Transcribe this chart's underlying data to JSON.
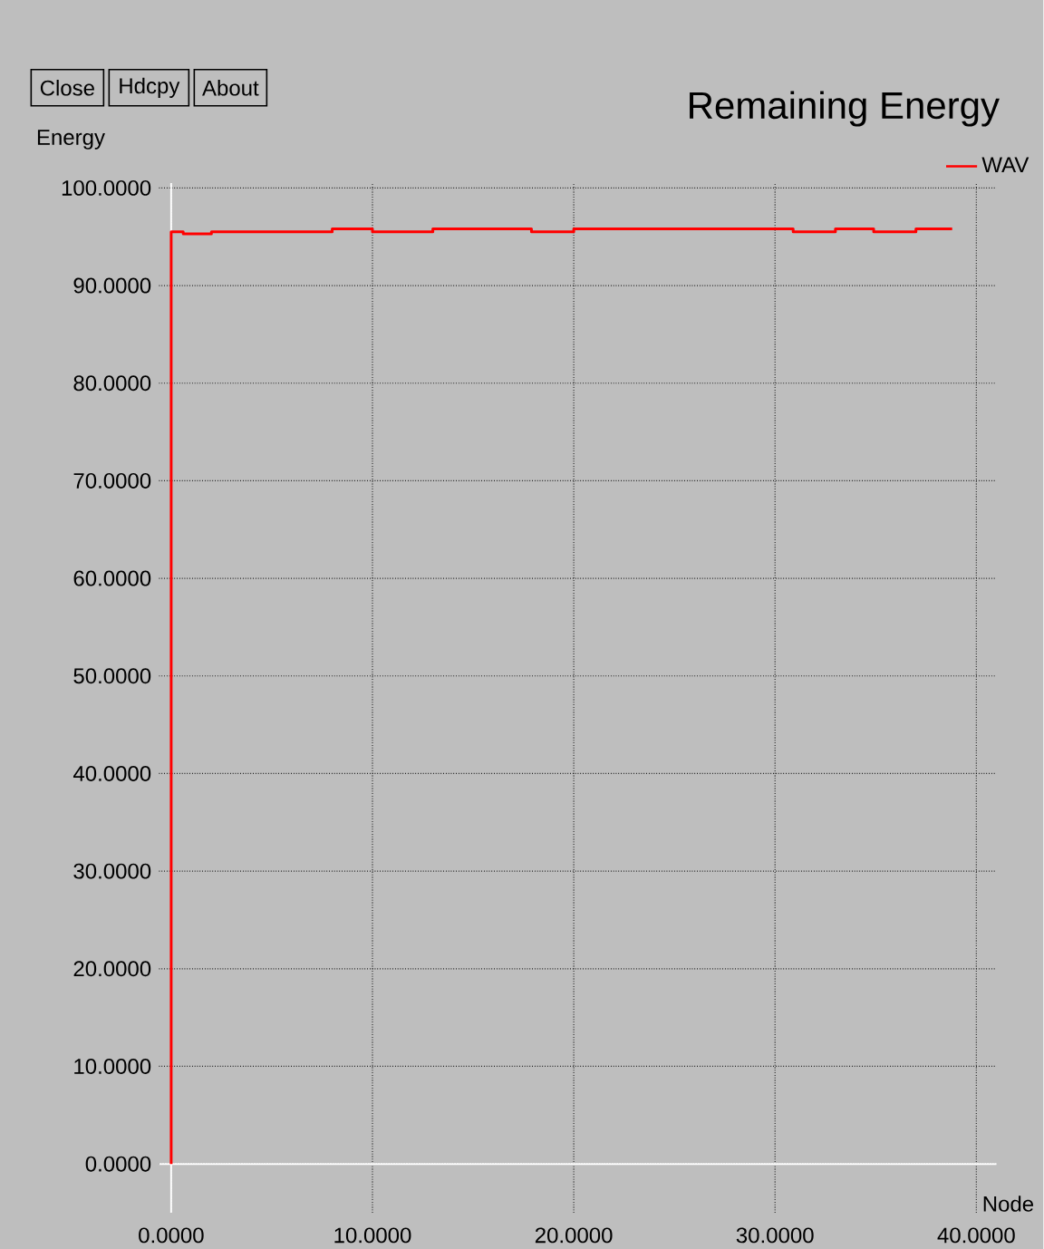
{
  "chart_data": {
    "type": "line",
    "title": "Remaining Energy",
    "xlabel": "Node",
    "ylabel": "Energy",
    "annotations": [
      "Close",
      "Hdcpy",
      "About"
    ],
    "xlim": [
      -0.6,
      41
    ],
    "ylim": [
      -5,
      100.5
    ],
    "xticks": [
      {
        "value": 0,
        "label": "0.0000"
      },
      {
        "value": 10,
        "label": "10.0000"
      },
      {
        "value": 20,
        "label": "20.0000"
      },
      {
        "value": 30,
        "label": "30.0000"
      },
      {
        "value": 40,
        "label": "40.0000"
      }
    ],
    "yticks": [
      {
        "value": 0,
        "label": "0.0000"
      },
      {
        "value": 10,
        "label": "10.0000"
      },
      {
        "value": 20,
        "label": "20.0000"
      },
      {
        "value": 30,
        "label": "30.0000"
      },
      {
        "value": 40,
        "label": "40.0000"
      },
      {
        "value": 50,
        "label": "50.0000"
      },
      {
        "value": 60,
        "label": "60.0000"
      },
      {
        "value": 70,
        "label": "70.0000"
      },
      {
        "value": 80,
        "label": "80.0000"
      },
      {
        "value": 90,
        "label": "90.0000"
      },
      {
        "value": 100,
        "label": "100.0000"
      }
    ],
    "grid": true,
    "legend": "top right",
    "series": [
      {
        "name": "WAV",
        "color": "#ff0000",
        "x": [
          0,
          0,
          0.6,
          0.6,
          2,
          2,
          8,
          8,
          10,
          10,
          13,
          13,
          17.9,
          17.9,
          20,
          20,
          30.9,
          30.9,
          33,
          33,
          34.9,
          34.9,
          37,
          37,
          38.8
        ],
        "values": [
          0,
          95.5,
          95.5,
          95.3,
          95.3,
          95.5,
          95.5,
          95.8,
          95.8,
          95.5,
          95.5,
          95.8,
          95.8,
          95.5,
          95.5,
          95.8,
          95.8,
          95.5,
          95.5,
          95.8,
          95.8,
          95.5,
          95.5,
          95.8,
          95.8
        ]
      }
    ]
  }
}
